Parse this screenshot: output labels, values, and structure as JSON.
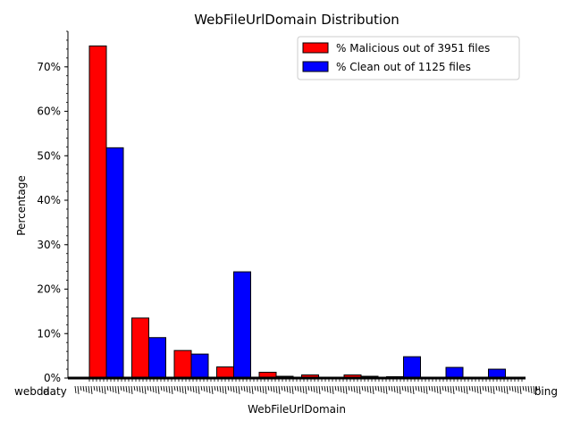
{
  "chart_data": {
    "type": "bar",
    "title": "WebFileUrlDomain Distribution",
    "xlabel": "WebFileUrlDomain",
    "ylabel": "Percentage",
    "ylim": [
      0,
      78
    ],
    "yticks": [
      0,
      10,
      20,
      30,
      40,
      50,
      60,
      70
    ],
    "ytick_format": "{v}%",
    "grid": false,
    "legend_position": "top-right",
    "x_tick_labels_visible": [
      "webda",
      "daty",
      "bing"
    ],
    "series": [
      {
        "name": "% Malicious out of 3951 files",
        "color": "#ff0000",
        "values": [
          74.7,
          13.5,
          6.2,
          2.5,
          1.3,
          0.7,
          0.7,
          0.3,
          0.0,
          0.0
        ]
      },
      {
        "name": "% Clean out of 1125 files",
        "color": "#0000ff",
        "values": [
          51.8,
          9.1,
          5.4,
          23.9,
          0.4,
          0.1,
          0.4,
          4.8,
          2.4,
          2.0
        ]
      }
    ]
  }
}
